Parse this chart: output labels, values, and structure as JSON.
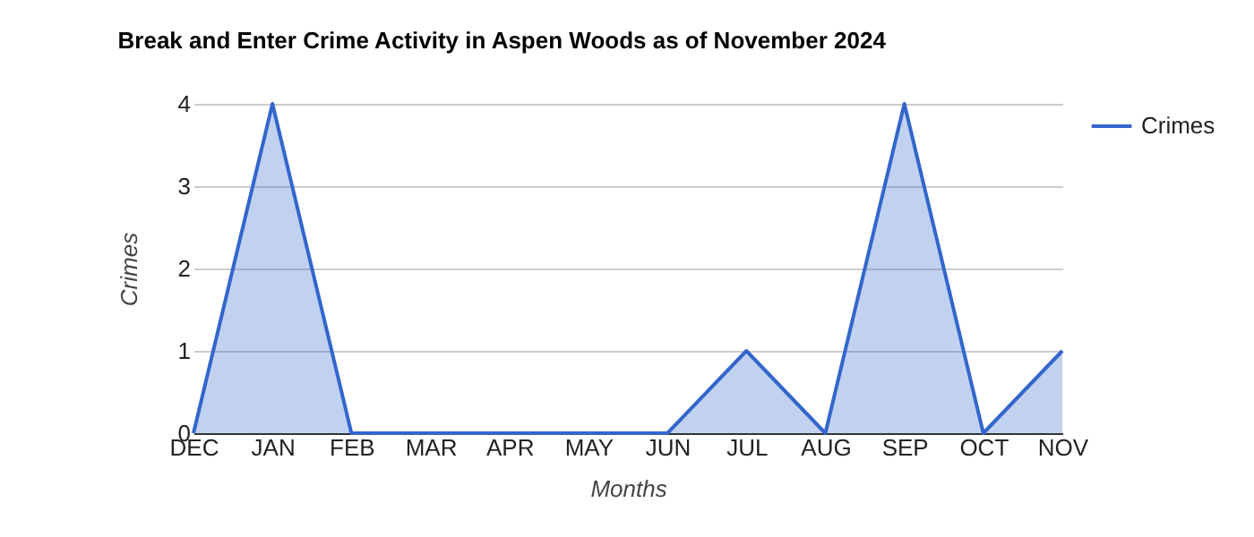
{
  "chart_data": {
    "type": "area",
    "title": "Break and Enter Crime Activity in Aspen Woods as of November 2024",
    "xlabel": "Months",
    "ylabel": "Crimes",
    "categories": [
      "DEC",
      "JAN",
      "FEB",
      "MAR",
      "APR",
      "MAY",
      "JUN",
      "JUL",
      "AUG",
      "SEP",
      "OCT",
      "NOV"
    ],
    "series": [
      {
        "name": "Crimes",
        "color": "#3366cc",
        "values": [
          0,
          4,
          0,
          0,
          0,
          0,
          0,
          1,
          0,
          4,
          0,
          1
        ]
      }
    ],
    "ylim": [
      0,
      4
    ],
    "yticks": [
      0,
      1,
      2,
      3,
      4
    ],
    "grid": "y",
    "legend": "top right"
  }
}
